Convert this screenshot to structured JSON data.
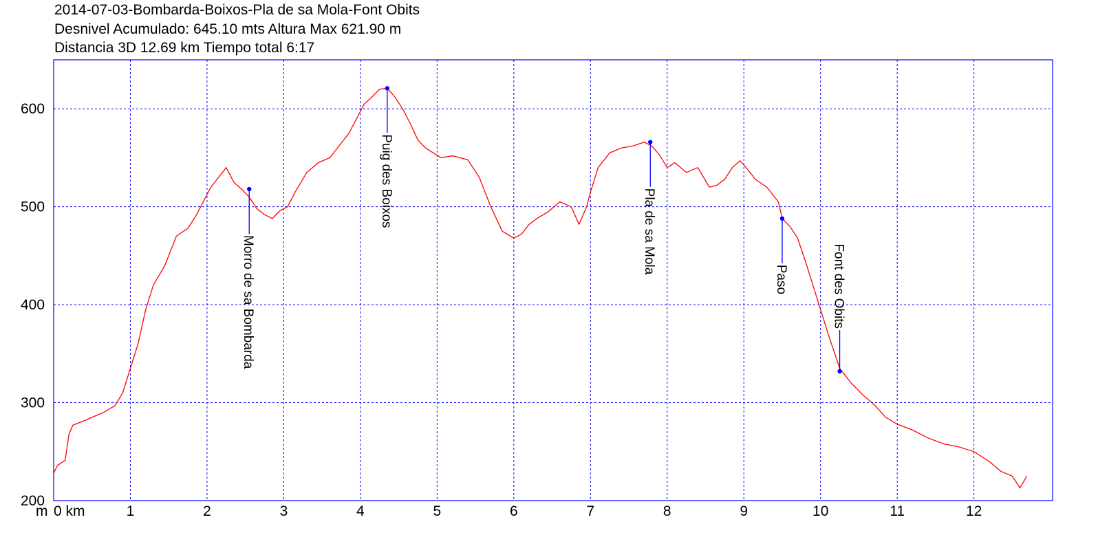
{
  "chart_data": {
    "type": "line",
    "title_lines": [
      "2014-07-03-Bombarda-Boixos-Pla de sa Mola-Font Obits",
      "Desnivel Acumulado: 645.10 mts  Altura Max 621.90 m",
      "Distancia 3D 12.69 km  Tiempo total 6:17"
    ],
    "y_unit_label": "m",
    "x_unit_label": "0 km",
    "xlim": [
      0,
      12.69
    ],
    "ylim": [
      200,
      650
    ],
    "x_ticks": [
      0,
      1,
      2,
      3,
      4,
      5,
      6,
      7,
      8,
      9,
      10,
      11,
      12
    ],
    "x_tick_labels": [
      "",
      "1",
      "2",
      "3",
      "4",
      "5",
      "6",
      "7",
      "8",
      "9",
      "10",
      "11",
      "12"
    ],
    "y_ticks": [
      200,
      300,
      400,
      500,
      600
    ],
    "grid": true,
    "colors": {
      "line": "#ff0000",
      "grid": "#0000ff",
      "frame": "#0000ff",
      "marker": "#0000ff"
    },
    "series": [
      {
        "x": [
          0,
          0.05,
          0.15,
          0.2,
          0.25,
          0.35,
          0.5,
          0.65,
          0.8,
          0.9,
          1.0,
          1.1,
          1.2,
          1.3,
          1.45,
          1.6,
          1.75,
          1.85,
          1.95,
          2.05,
          2.15,
          2.25,
          2.35,
          2.45,
          2.55,
          2.65,
          2.75,
          2.85,
          2.95,
          3.05,
          3.15,
          3.3,
          3.45,
          3.6,
          3.75,
          3.85,
          3.95,
          4.05,
          4.15,
          4.25,
          4.35,
          4.45,
          4.55,
          4.65,
          4.75,
          4.85,
          4.95,
          5.05,
          5.2,
          5.4,
          5.55,
          5.7,
          5.85,
          6.0,
          6.1,
          6.2,
          6.3,
          6.45,
          6.6,
          6.75,
          6.85,
          6.95,
          7.0,
          7.1,
          7.25,
          7.4,
          7.55,
          7.7,
          7.8,
          7.9,
          8.0,
          8.1,
          8.25,
          8.4,
          8.55,
          8.65,
          8.75,
          8.85,
          8.95,
          9.05,
          9.15,
          9.3,
          9.45,
          9.5,
          9.6,
          9.7,
          9.8,
          9.9,
          10.0,
          10.1,
          10.25,
          10.4,
          10.55,
          10.7,
          10.85,
          11.0,
          11.2,
          11.4,
          11.6,
          11.8,
          12.0,
          12.2,
          12.35,
          12.5,
          12.6,
          12.69
        ],
        "y": [
          228,
          236,
          241,
          268,
          277,
          280,
          285,
          290,
          297,
          310,
          335,
          360,
          395,
          420,
          440,
          470,
          478,
          490,
          505,
          520,
          530,
          540,
          525,
          518,
          510,
          498,
          492,
          488,
          496,
          500,
          515,
          535,
          545,
          550,
          565,
          575,
          590,
          605,
          612,
          620,
          621,
          612,
          600,
          585,
          568,
          560,
          555,
          550,
          552,
          548,
          530,
          500,
          475,
          468,
          472,
          482,
          488,
          495,
          505,
          500,
          482,
          500,
          515,
          540,
          555,
          560,
          562,
          566,
          562,
          553,
          540,
          545,
          535,
          540,
          520,
          522,
          528,
          540,
          547,
          538,
          528,
          520,
          505,
          488,
          480,
          468,
          445,
          420,
          395,
          370,
          335,
          320,
          308,
          298,
          285,
          278,
          272,
          264,
          258,
          255,
          250,
          240,
          230,
          225,
          213,
          225
        ],
        "name": ""
      }
    ],
    "annotations": [
      {
        "label": "Morro de sa Bombarda",
        "x": 2.55,
        "y": 518
      },
      {
        "label": "Puig des Boixos",
        "x": 4.35,
        "y": 621
      },
      {
        "label": "Pla de sa Mola",
        "x": 7.78,
        "y": 566
      },
      {
        "label": "Paso",
        "x": 9.5,
        "y": 488
      },
      {
        "label": "Font des Obits",
        "x": 10.25,
        "y": 332
      }
    ]
  }
}
